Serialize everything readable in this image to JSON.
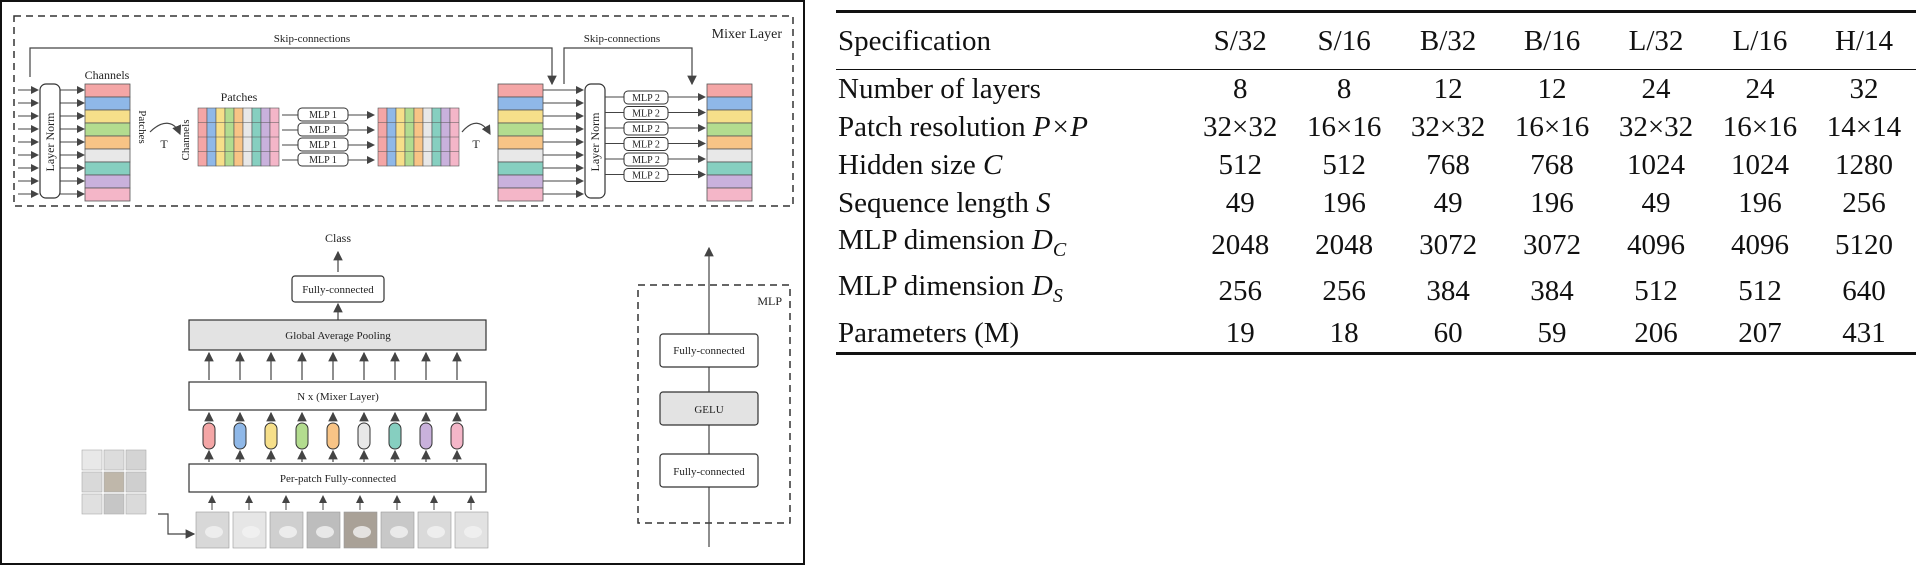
{
  "figure": {
    "mixer_layer_label": "Mixer Layer",
    "skip_label": "Skip-connections",
    "layer_norm": "Layer Norm",
    "channels_label": "Channels",
    "patches_label": "Patches",
    "transpose_symbol": "T",
    "mlp1_label": "MLP 1",
    "mlp2_label": "MLP 2",
    "class_label": "Class",
    "fc_label": "Fully-connected",
    "gap_label": "Global Average Pooling",
    "nx_label": "N x (Mixer Layer)",
    "per_patch_label": "Per-patch Fully-connected",
    "mlp_box_title": "MLP",
    "mlp_fc_top": "Fully-connected",
    "mlp_gelu": "GELU",
    "mlp_fc_bottom": "Fully-connected",
    "row_colors": [
      "#f4a6a6",
      "#8fb8e8",
      "#f6df8a",
      "#b3dc8f",
      "#f8c486",
      "#e8e8e8",
      "#86cfc0",
      "#c9b1dc",
      "#f4b6c8"
    ],
    "token_colors": [
      "#f4a6a6",
      "#8fb8e8",
      "#f6df8a",
      "#b3dc8f",
      "#f8c486",
      "#e8e8e8",
      "#86cfc0",
      "#c9b1dc",
      "#f4b6c8"
    ]
  },
  "table": {
    "columns": [
      "Specification",
      "S/32",
      "S/16",
      "B/32",
      "B/16",
      "L/32",
      "L/16",
      "H/14"
    ],
    "rows": [
      {
        "label": "Number of layers",
        "math": "",
        "values": [
          "8",
          "8",
          "12",
          "12",
          "24",
          "24",
          "32"
        ]
      },
      {
        "label": "Patch resolution ",
        "math": "P×P",
        "values": [
          "32×32",
          "16×16",
          "32×32",
          "16×16",
          "32×32",
          "16×16",
          "14×14"
        ]
      },
      {
        "label": "Hidden size ",
        "math": "C",
        "values": [
          "512",
          "512",
          "768",
          "768",
          "1024",
          "1024",
          "1280"
        ]
      },
      {
        "label": "Sequence length ",
        "math": "S",
        "values": [
          "49",
          "196",
          "49",
          "196",
          "49",
          "196",
          "256"
        ]
      },
      {
        "label": "MLP dimension ",
        "math": "D",
        "sub": "C",
        "values": [
          "2048",
          "2048",
          "3072",
          "3072",
          "4096",
          "4096",
          "5120"
        ]
      },
      {
        "label": "MLP dimension ",
        "math": "D",
        "sub": "S",
        "values": [
          "256",
          "256",
          "384",
          "384",
          "512",
          "512",
          "640"
        ]
      },
      {
        "label": "Parameters (M)",
        "math": "",
        "values": [
          "19",
          "18",
          "60",
          "59",
          "206",
          "207",
          "431"
        ]
      }
    ]
  }
}
